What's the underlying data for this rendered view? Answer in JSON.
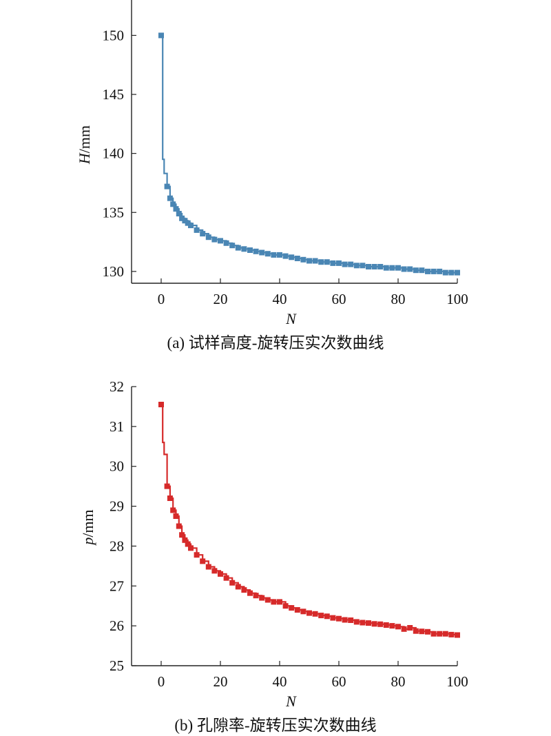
{
  "chart_data": [
    {
      "type": "line",
      "caption": "(a) 试样高度-旋转压实次数曲线",
      "ylabel_var": "H",
      "ylabel_unit": "/mm",
      "xlabel": "N",
      "xlim": [
        -10,
        100
      ],
      "ylim": [
        129,
        153
      ],
      "xticks": [
        0,
        20,
        40,
        60,
        80,
        100
      ],
      "yticks": [
        130,
        135,
        140,
        145,
        150
      ],
      "color": "#4a86b4",
      "series": [
        {
          "x": [
            0,
            0.5,
            1,
            2,
            3,
            4,
            5,
            6,
            7,
            8,
            9,
            10,
            12,
            14,
            16,
            18,
            20,
            22,
            24,
            26,
            28,
            30,
            32,
            34,
            36,
            38,
            40,
            42,
            44,
            46,
            48,
            50,
            52,
            54,
            56,
            58,
            60,
            62,
            64,
            66,
            68,
            70,
            72,
            74,
            76,
            78,
            80,
            82,
            84,
            86,
            88,
            90,
            92,
            94,
            96,
            98,
            100
          ],
          "y": [
            150.0,
            139.5,
            138.3,
            137.2,
            136.2,
            135.7,
            135.3,
            134.9,
            134.5,
            134.3,
            134.1,
            133.9,
            133.5,
            133.2,
            132.9,
            132.7,
            132.6,
            132.4,
            132.2,
            132.0,
            131.9,
            131.8,
            131.7,
            131.6,
            131.5,
            131.4,
            131.4,
            131.3,
            131.2,
            131.1,
            131.0,
            130.9,
            130.9,
            130.8,
            130.8,
            130.7,
            130.7,
            130.6,
            130.6,
            130.5,
            130.5,
            130.4,
            130.4,
            130.4,
            130.3,
            130.3,
            130.3,
            130.2,
            130.2,
            130.1,
            130.1,
            130.0,
            130.0,
            130.0,
            129.9,
            129.9,
            129.9
          ]
        }
      ]
    },
    {
      "type": "line",
      "caption": "(b) 孔隙率-旋转压实次数曲线",
      "ylabel_var": "p",
      "ylabel_unit": "/mm",
      "xlabel": "N",
      "xlim": [
        -10,
        100
      ],
      "ylim": [
        25,
        32
      ],
      "xticks": [
        0,
        20,
        40,
        60,
        80,
        100
      ],
      "yticks": [
        25,
        26,
        27,
        28,
        29,
        30,
        31,
        32
      ],
      "color": "#d62a2a",
      "series": [
        {
          "x": [
            0,
            0.5,
            1,
            2,
            3,
            4,
            5,
            6,
            7,
            8,
            9,
            10,
            12,
            14,
            16,
            18,
            20,
            22,
            24,
            26,
            28,
            30,
            32,
            34,
            36,
            38,
            40,
            42,
            44,
            46,
            48,
            50,
            52,
            54,
            56,
            58,
            60,
            62,
            64,
            66,
            68,
            70,
            72,
            74,
            76,
            78,
            80,
            82,
            84,
            86,
            88,
            90,
            92,
            94,
            96,
            98,
            100
          ],
          "y": [
            31.55,
            30.6,
            30.3,
            29.5,
            29.2,
            28.9,
            28.75,
            28.5,
            28.28,
            28.15,
            28.05,
            27.95,
            27.78,
            27.62,
            27.48,
            27.38,
            27.3,
            27.2,
            27.08,
            26.98,
            26.9,
            26.82,
            26.76,
            26.7,
            26.65,
            26.6,
            26.6,
            26.5,
            26.45,
            26.4,
            26.36,
            26.32,
            26.3,
            26.26,
            26.24,
            26.2,
            26.18,
            26.15,
            26.14,
            26.1,
            26.08,
            26.07,
            26.05,
            26.04,
            26.02,
            26.0,
            25.98,
            25.92,
            25.95,
            25.87,
            25.86,
            25.85,
            25.8,
            25.8,
            25.8,
            25.78,
            25.77
          ]
        }
      ]
    }
  ]
}
